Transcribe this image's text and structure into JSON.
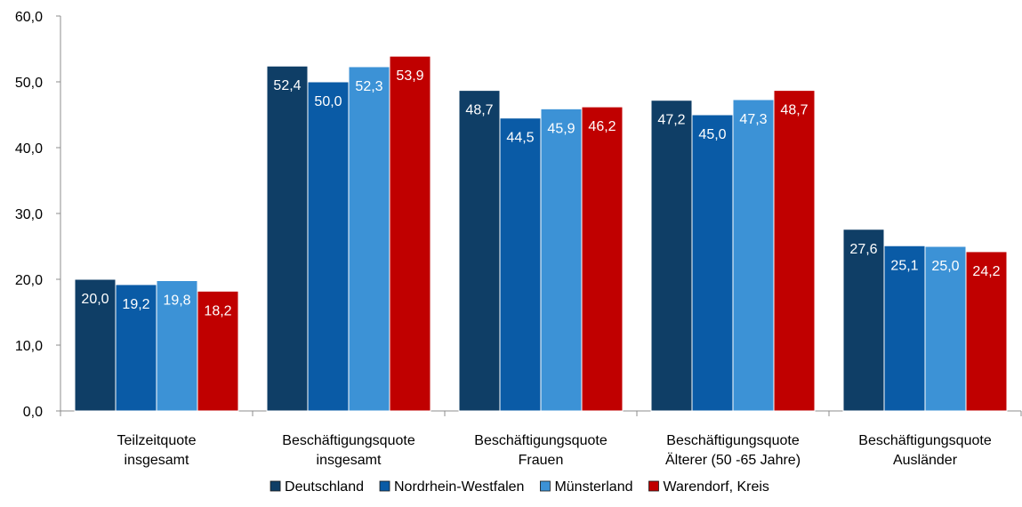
{
  "chart_data": {
    "type": "bar",
    "categories": [
      [
        "Teilzeitquote",
        "insgesamt"
      ],
      [
        "Beschäftigungsquote",
        "insgesamt"
      ],
      [
        "Beschäftigungsquote",
        "Frauen"
      ],
      [
        "Beschäftigungsquote",
        "Älterer (50 -65 Jahre)"
      ],
      [
        "Beschäftigungsquote",
        "Ausländer"
      ]
    ],
    "series": [
      {
        "name": "Deutschland",
        "color": "#0f3e66",
        "values": [
          20.0,
          52.4,
          48.7,
          47.2,
          27.6
        ]
      },
      {
        "name": "Nordrhein-Westfalen",
        "color": "#0a5ba6",
        "values": [
          19.2,
          50.0,
          44.5,
          45.0,
          25.1
        ]
      },
      {
        "name": "Münsterland",
        "color": "#3c92d6",
        "values": [
          19.8,
          52.3,
          45.9,
          47.3,
          25.0
        ]
      },
      {
        "name": "Warendorf, Kreis",
        "color": "#c00000",
        "values": [
          18.2,
          53.9,
          46.2,
          48.7,
          24.2
        ]
      }
    ],
    "ylim": [
      0,
      60
    ],
    "yticks": [
      0,
      10,
      20,
      30,
      40,
      50,
      60
    ],
    "value_format": "comma-one-decimal",
    "grid": false,
    "legend_position": "bottom",
    "data_labels": true
  }
}
